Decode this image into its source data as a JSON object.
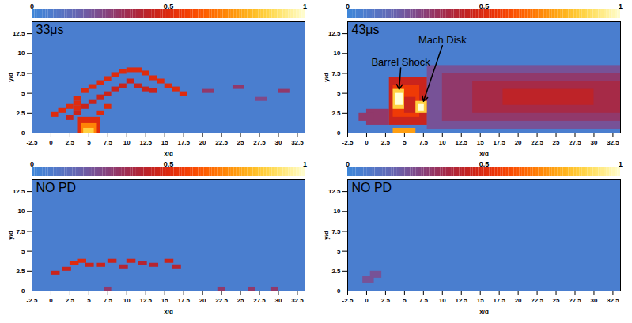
{
  "chart_data": [
    {
      "type": "heatmap",
      "label": "33μs",
      "xlabel": "x/d",
      "ylabel": "y/d",
      "xlim": [
        -2.5,
        33.5
      ],
      "ylim": [
        0,
        14
      ],
      "xticks": [
        -2.5,
        0,
        2.5,
        5,
        7.5,
        10,
        12.5,
        15,
        17.5,
        20,
        22.5,
        25,
        27.5,
        30,
        32.5
      ],
      "yticks": [
        0,
        2.5,
        5,
        7.5,
        10,
        12.5
      ],
      "colorbar_range": [
        0,
        1
      ],
      "colorbar_ticks": [
        0,
        0.5,
        1
      ],
      "background": 0.05,
      "cells": [
        {
          "x1": 0,
          "x2": 1,
          "y1": 2,
          "y2": 2.6,
          "value": 0.5
        },
        {
          "x1": 1,
          "x2": 2,
          "y1": 2.5,
          "y2": 3.1,
          "value": 0.5
        },
        {
          "x1": 2,
          "x2": 3,
          "y1": 3,
          "y2": 3.6,
          "value": 0.5
        },
        {
          "x1": 3,
          "x2": 4,
          "y1": 4,
          "y2": 4.6,
          "value": 0.5
        },
        {
          "x1": 4,
          "x2": 5,
          "y1": 5,
          "y2": 5.6,
          "value": 0.5
        },
        {
          "x1": 5,
          "x2": 6,
          "y1": 5.5,
          "y2": 6.1,
          "value": 0.5
        },
        {
          "x1": 6,
          "x2": 7,
          "y1": 6,
          "y2": 6.6,
          "value": 0.5
        },
        {
          "x1": 7,
          "x2": 8,
          "y1": 6.5,
          "y2": 7.1,
          "value": 0.5
        },
        {
          "x1": 8,
          "x2": 9,
          "y1": 7,
          "y2": 7.6,
          "value": 0.5
        },
        {
          "x1": 9,
          "x2": 10,
          "y1": 7.4,
          "y2": 8,
          "value": 0.5
        },
        {
          "x1": 10,
          "x2": 11,
          "y1": 7.6,
          "y2": 8.2,
          "value": 0.5
        },
        {
          "x1": 11,
          "x2": 12,
          "y1": 7.6,
          "y2": 8.2,
          "value": 0.5
        },
        {
          "x1": 12,
          "x2": 13,
          "y1": 7.2,
          "y2": 7.8,
          "value": 0.5
        },
        {
          "x1": 13,
          "x2": 14,
          "y1": 6.6,
          "y2": 7.2,
          "value": 0.5
        },
        {
          "x1": 14,
          "x2": 15,
          "y1": 6.2,
          "y2": 6.8,
          "value": 0.5
        },
        {
          "x1": 15,
          "x2": 16,
          "y1": 5.6,
          "y2": 6.2,
          "value": 0.5
        },
        {
          "x1": 16,
          "x2": 17,
          "y1": 5.2,
          "y2": 5.8,
          "value": 0.5
        },
        {
          "x1": 17,
          "x2": 18,
          "y1": 4.6,
          "y2": 5.2,
          "value": 0.5
        },
        {
          "x1": 2,
          "x2": 3,
          "y1": 1.6,
          "y2": 2.2,
          "value": 0.45
        },
        {
          "x1": 3,
          "x2": 4,
          "y1": 2.2,
          "y2": 2.8,
          "value": 0.45
        },
        {
          "x1": 4,
          "x2": 5,
          "y1": 3,
          "y2": 3.6,
          "value": 0.45
        },
        {
          "x1": 5,
          "x2": 6,
          "y1": 3.6,
          "y2": 4.2,
          "value": 0.45
        },
        {
          "x1": 6,
          "x2": 7,
          "y1": 4.2,
          "y2": 4.8,
          "value": 0.45
        },
        {
          "x1": 7,
          "x2": 8,
          "y1": 4.6,
          "y2": 5.2,
          "value": 0.45
        },
        {
          "x1": 8,
          "x2": 9,
          "y1": 5.2,
          "y2": 5.8,
          "value": 0.45
        },
        {
          "x1": 9,
          "x2": 10,
          "y1": 5.6,
          "y2": 6.2,
          "value": 0.45
        },
        {
          "x1": 10,
          "x2": 11,
          "y1": 6.2,
          "y2": 6.8,
          "value": 0.45
        },
        {
          "x1": 11,
          "x2": 12,
          "y1": 5.6,
          "y2": 6.2,
          "value": 0.45
        },
        {
          "x1": 12,
          "x2": 13,
          "y1": 5.2,
          "y2": 5.8,
          "value": 0.45
        },
        {
          "x1": 13,
          "x2": 14,
          "y1": 5,
          "y2": 5.6,
          "value": 0.45
        },
        {
          "x1": 3,
          "x2": 4,
          "y1": 2.8,
          "y2": 3.4,
          "value": 0.5
        },
        {
          "x1": 3,
          "x2": 4,
          "y1": 3.4,
          "y2": 4,
          "value": 0.5
        },
        {
          "x1": 6,
          "x2": 7,
          "y1": 2.2,
          "y2": 2.8,
          "value": 0.5
        },
        {
          "x1": 7,
          "x2": 8,
          "y1": 3,
          "y2": 3.6,
          "value": 0.5
        },
        {
          "x1": 3.5,
          "x2": 6.5,
          "y1": 0,
          "y2": 2,
          "value": 0.5
        },
        {
          "x1": 4,
          "x2": 6,
          "y1": 0,
          "y2": 1.2,
          "value": 0.7
        },
        {
          "x1": 4.3,
          "x2": 5.7,
          "y1": 0,
          "y2": 0.6,
          "value": 0.85
        },
        {
          "x1": 20,
          "x2": 21.5,
          "y1": 5,
          "y2": 5.5,
          "value": 0.3
        },
        {
          "x1": 24,
          "x2": 25.5,
          "y1": 5.5,
          "y2": 6,
          "value": 0.3
        },
        {
          "x1": 30,
          "x2": 31.5,
          "y1": 5,
          "y2": 5.5,
          "value": 0.3
        },
        {
          "x1": 27,
          "x2": 28.5,
          "y1": 4,
          "y2": 4.5,
          "value": 0.25
        }
      ]
    },
    {
      "type": "heatmap",
      "label": "43μs",
      "xlabel": "x/d",
      "ylabel": "y/d",
      "xlim": [
        -2.5,
        33.5
      ],
      "ylim": [
        0,
        14
      ],
      "xticks": [
        -2.5,
        0,
        2.5,
        5,
        7.5,
        10,
        12.5,
        15,
        17.5,
        20,
        22.5,
        25,
        27.5,
        30,
        32.5
      ],
      "yticks": [
        0,
        2.5,
        5,
        7.5,
        10,
        12.5
      ],
      "colorbar_range": [
        0,
        1
      ],
      "colorbar_ticks": [
        0,
        0.5,
        1
      ],
      "background": 0.05,
      "cells": [
        {
          "x1": 8,
          "x2": 33.5,
          "y1": 0.5,
          "y2": 8.5,
          "value": 0.22
        },
        {
          "x1": 10,
          "x2": 33.5,
          "y1": 1.5,
          "y2": 7.5,
          "value": 0.3
        },
        {
          "x1": 14,
          "x2": 33.5,
          "y1": 2.5,
          "y2": 6.5,
          "value": 0.36
        },
        {
          "x1": 18,
          "x2": 30,
          "y1": 3.5,
          "y2": 5.5,
          "value": 0.42
        },
        {
          "x1": 0,
          "x2": 3,
          "y1": 1,
          "y2": 3,
          "value": 0.3
        },
        {
          "x1": -1,
          "x2": 1,
          "y1": 1.5,
          "y2": 2.5,
          "value": 0.3
        },
        {
          "x1": 3,
          "x2": 8,
          "y1": 1,
          "y2": 7,
          "value": 0.45
        },
        {
          "x1": 3.5,
          "x2": 7,
          "y1": 2,
          "y2": 6,
          "value": 0.55
        },
        {
          "x1": 5,
          "x2": 6.5,
          "y1": 2.5,
          "y2": 4.5,
          "value": 0.45
        },
        {
          "x1": 3.5,
          "x2": 5,
          "y1": 3,
          "y2": 5.5,
          "value": 0.85
        },
        {
          "x1": 3.8,
          "x2": 4.8,
          "y1": 3.5,
          "y2": 5,
          "value": 1
        },
        {
          "x1": 6.5,
          "x2": 8,
          "y1": 2.5,
          "y2": 4,
          "value": 0.85
        },
        {
          "x1": 6.8,
          "x2": 7.6,
          "y1": 2.8,
          "y2": 3.6,
          "value": 1
        },
        {
          "x1": 3.5,
          "x2": 6.5,
          "y1": 0,
          "y2": 0.6,
          "value": 0.75
        }
      ],
      "annotations": [
        {
          "text": "Barrel Shock",
          "x": 4.5,
          "y": 8.2,
          "target_x": 4.3,
          "target_y": 5.5
        },
        {
          "text": "Mach Disk",
          "x": 10,
          "y": 11,
          "target_x": 7.5,
          "target_y": 4
        }
      ]
    },
    {
      "type": "heatmap",
      "label": "NO PD",
      "xlabel": "x/d",
      "ylabel": "y/d",
      "xlim": [
        -2.5,
        33.5
      ],
      "ylim": [
        0,
        14
      ],
      "xticks": [
        -2.5,
        0,
        2.5,
        5,
        7.5,
        10,
        12.5,
        15,
        17.5,
        20,
        22.5,
        25,
        27.5,
        30,
        32.5
      ],
      "yticks": [
        0,
        2.5,
        5,
        7.5,
        10,
        12.5
      ],
      "colorbar_range": [
        0,
        1
      ],
      "colorbar_ticks": [
        0,
        0.5,
        1
      ],
      "background": 0.05,
      "cells": [
        {
          "x1": 0,
          "x2": 1.2,
          "y1": 2,
          "y2": 2.5,
          "value": 0.45
        },
        {
          "x1": 1.5,
          "x2": 2.7,
          "y1": 2.5,
          "y2": 3,
          "value": 0.45
        },
        {
          "x1": 2.5,
          "x2": 3.7,
          "y1": 3.2,
          "y2": 3.7,
          "value": 0.5
        },
        {
          "x1": 3.5,
          "x2": 4.7,
          "y1": 3.5,
          "y2": 4,
          "value": 0.5
        },
        {
          "x1": 4.5,
          "x2": 5.7,
          "y1": 3,
          "y2": 3.5,
          "value": 0.45
        },
        {
          "x1": 6,
          "x2": 7.2,
          "y1": 3,
          "y2": 3.5,
          "value": 0.45
        },
        {
          "x1": 7.5,
          "x2": 8.7,
          "y1": 3.5,
          "y2": 4,
          "value": 0.45
        },
        {
          "x1": 9,
          "x2": 10.2,
          "y1": 2.8,
          "y2": 3.3,
          "value": 0.4
        },
        {
          "x1": 10,
          "x2": 11.2,
          "y1": 3.5,
          "y2": 4,
          "value": 0.45
        },
        {
          "x1": 11.5,
          "x2": 12.7,
          "y1": 3.2,
          "y2": 3.7,
          "value": 0.4
        },
        {
          "x1": 13,
          "x2": 14.2,
          "y1": 3,
          "y2": 3.5,
          "value": 0.4
        },
        {
          "x1": 15,
          "x2": 16.2,
          "y1": 3.5,
          "y2": 4,
          "value": 0.45
        },
        {
          "x1": 16,
          "x2": 17.2,
          "y1": 2.8,
          "y2": 3.3,
          "value": 0.4
        },
        {
          "x1": 7,
          "x2": 8,
          "y1": 0,
          "y2": 0.5,
          "value": 0.3
        },
        {
          "x1": 22,
          "x2": 23,
          "y1": 0,
          "y2": 0.5,
          "value": 0.3
        },
        {
          "x1": 26,
          "x2": 27,
          "y1": 0,
          "y2": 0.5,
          "value": 0.3
        },
        {
          "x1": 29,
          "x2": 30,
          "y1": 0,
          "y2": 0.5,
          "value": 0.3
        }
      ]
    },
    {
      "type": "heatmap",
      "label": "NO PD",
      "xlabel": "x/d",
      "ylabel": "y/d",
      "xlim": [
        -2.5,
        33.5
      ],
      "ylim": [
        0,
        14
      ],
      "xticks": [
        -2.5,
        0,
        2.5,
        5,
        7.5,
        10,
        12.5,
        15,
        17.5,
        20,
        22.5,
        25,
        27.5,
        30,
        32.5
      ],
      "yticks": [
        0,
        2.5,
        5,
        7.5,
        10,
        12.5
      ],
      "colorbar_range": [
        0,
        1
      ],
      "colorbar_ticks": [
        0,
        0.5,
        1
      ],
      "background": 0.05,
      "cells": [
        {
          "x1": -0.5,
          "x2": 1,
          "y1": 1,
          "y2": 1.8,
          "value": 0.22
        },
        {
          "x1": 0.5,
          "x2": 2,
          "y1": 1.6,
          "y2": 2.5,
          "value": 0.22
        }
      ]
    }
  ]
}
